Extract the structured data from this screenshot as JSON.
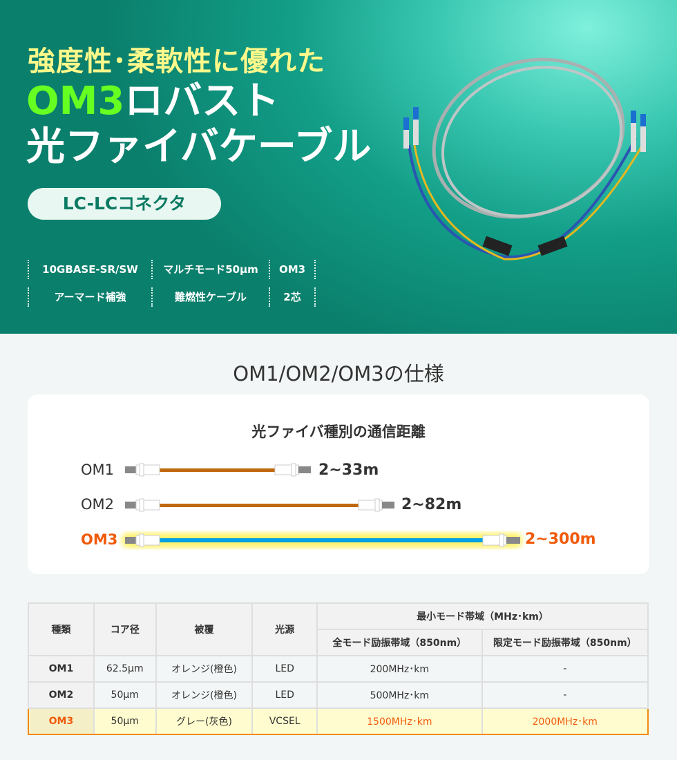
{
  "hero": {
    "line1": "強度性･柔軟性に優れた",
    "line2_accent": "OM3",
    "line2_rest": "ロバスト",
    "line3": "光ファイバケーブル",
    "pill": "LC-LCコネクタ",
    "features": [
      "10GBASE-SR/SW",
      "マルチモード50μm",
      "OM3",
      "アーマード補強",
      "難燃性ケーブル",
      "2芯"
    ]
  },
  "colors": {
    "accent_green": "#66ff22",
    "om3_orange": "#f05a0a",
    "om1_om2_cable": "#c0680e",
    "om3_cable": "#00a0e6"
  },
  "section_title": "OM1/OM2/OM3の仕様",
  "distance": {
    "title": "光ファイバ種別の通信距離",
    "rows": [
      {
        "type": "OM1",
        "range": "2~33m"
      },
      {
        "type": "OM2",
        "range": "2~82m"
      },
      {
        "type": "OM3",
        "range": "2~300m"
      }
    ]
  },
  "table": {
    "headers": {
      "type": "種類",
      "core": "コア径",
      "jacket": "被覆",
      "source": "光源",
      "bandwidth": "最小モード帯域（MHz･km）",
      "full": "全モード励振帯域（850nm）",
      "limited": "限定モード励振帯域（850nm）"
    },
    "rows": [
      [
        "OM1",
        "62.5μm",
        "オレンジ(橙色)",
        "LED",
        "200MHz･km",
        "-"
      ],
      [
        "OM2",
        "50μm",
        "オレンジ(橙色)",
        "LED",
        "500MHz･km",
        "-"
      ],
      [
        "OM3",
        "50μm",
        "グレー(灰色)",
        "VCSEL",
        "1500MHz･km",
        "2000MHz･km"
      ]
    ]
  }
}
